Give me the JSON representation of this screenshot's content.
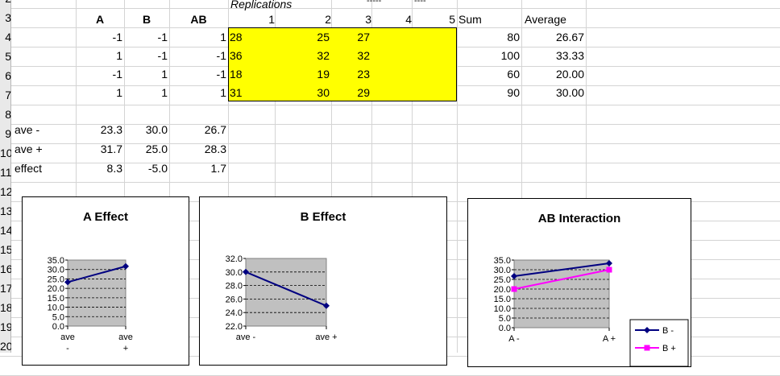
{
  "top_partial": {
    "replications_label": "Replications",
    "dash1": "-----",
    "dash2": "----"
  },
  "row_numbers": [
    "2",
    "3",
    "4",
    "5",
    "6",
    "7",
    "8",
    "9",
    "10",
    "11",
    "12",
    "13",
    "14",
    "15",
    "16",
    "17",
    "18",
    "19",
    "20"
  ],
  "headers": {
    "A": "A",
    "B": "B",
    "AB": "AB",
    "rep": [
      "1",
      "2",
      "3",
      "4",
      "5"
    ],
    "sum": "Sum",
    "average": "Average"
  },
  "design_rows": [
    {
      "A": "-1",
      "B": "-1",
      "AB": "1",
      "r1": "28",
      "r2": "25",
      "r3": "27",
      "sum": "80",
      "avg": "26.67"
    },
    {
      "A": "1",
      "B": "-1",
      "AB": "-1",
      "r1": "36",
      "r2": "32",
      "r3": "32",
      "sum": "100",
      "avg": "33.33"
    },
    {
      "A": "-1",
      "B": "1",
      "AB": "-1",
      "r1": "18",
      "r2": "19",
      "r3": "23",
      "sum": "60",
      "avg": "20.00"
    },
    {
      "A": "1",
      "B": "1",
      "AB": "1",
      "r1": "31",
      "r2": "30",
      "r3": "29",
      "sum": "90",
      "avg": "30.00"
    }
  ],
  "summary_rows": [
    {
      "label": "ave -",
      "A": "23.3",
      "B": "30.0",
      "AB": "26.7"
    },
    {
      "label": "ave +",
      "A": "31.7",
      "B": "25.0",
      "AB": "28.3"
    },
    {
      "label": "effect",
      "A": "8.3",
      "B": "-5.0",
      "AB": "1.7"
    }
  ],
  "colors": {
    "yellow": "#ffff00",
    "plot_area": "#c0c0c0",
    "series_navy": "#000080",
    "series_magenta": "#ff00ff"
  },
  "chart_data": [
    {
      "type": "line",
      "title": "A Effect",
      "categories": [
        "ave -",
        "ave +"
      ],
      "series": [
        {
          "values": [
            23.3,
            31.7
          ]
        }
      ],
      "ylim": [
        0,
        35
      ],
      "yticks": [
        "35.0",
        "30.0",
        "25.0",
        "20.0",
        "15.0",
        "10.0",
        "5.0",
        "0.0"
      ],
      "grid": true
    },
    {
      "type": "line",
      "title": "B Effect",
      "categories": [
        "ave -",
        "ave +"
      ],
      "series": [
        {
          "values": [
            30.0,
            25.0
          ]
        }
      ],
      "ylim": [
        22,
        32
      ],
      "yticks": [
        "32.0",
        "30.0",
        "28.0",
        "26.0",
        "24.0",
        "22.0"
      ],
      "grid": true
    },
    {
      "type": "line",
      "title": "AB Interaction",
      "categories": [
        "A -",
        "A +"
      ],
      "series": [
        {
          "name": "B -",
          "values": [
            26.67,
            33.33
          ]
        },
        {
          "name": "B +",
          "values": [
            20.0,
            30.0
          ]
        }
      ],
      "ylim": [
        0,
        35
      ],
      "yticks": [
        "35.0",
        "30.0",
        "25.0",
        "20.0",
        "15.0",
        "10.0",
        "5.0",
        "0.0"
      ],
      "grid": true,
      "legend": "bottom-right"
    }
  ]
}
